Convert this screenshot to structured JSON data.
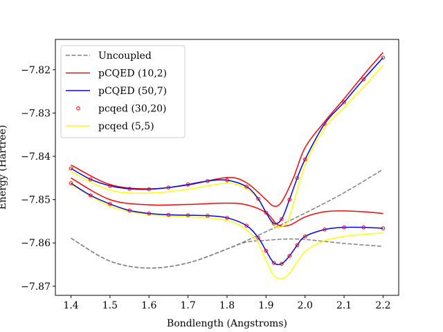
{
  "chart_data": {
    "type": "line",
    "title": "",
    "xlabel": "Bondlength (Angstroms)",
    "ylabel": "Energy (Hartree)",
    "xlim": [
      1.36,
      2.24
    ],
    "ylim": [
      -7.8721,
      -7.813
    ],
    "xticks": [
      1.4,
      1.5,
      1.6,
      1.7,
      1.8,
      1.9,
      2.0,
      2.1,
      2.2
    ],
    "xtick_labels": [
      "1.4",
      "1.5",
      "1.6",
      "1.7",
      "1.8",
      "1.9",
      "2.0",
      "2.1",
      "2.2"
    ],
    "yticks": [
      -7.87,
      -7.86,
      -7.85,
      -7.84,
      -7.83,
      -7.82
    ],
    "ytick_labels": [
      "−7.87",
      "−7.86",
      "−7.85",
      "−7.84",
      "−7.83",
      "−7.82"
    ],
    "grid": false,
    "legend_position": "top-left",
    "legend": [
      {
        "label": "Uncoupled",
        "style": "dashed",
        "color": "#808080"
      },
      {
        "label": "pCQED (10,2)",
        "style": "line",
        "color": "#ff0000"
      },
      {
        "label": "pCQED (50,7)",
        "style": "line",
        "color": "#0000ff"
      },
      {
        "label": "pcqed (30,20)",
        "style": "markers",
        "color": "#ff0000"
      },
      {
        "label": "pcqed (5,5)",
        "style": "line",
        "color": "#ffff00"
      }
    ],
    "series": [
      {
        "legend_index": 0,
        "style": "dashed",
        "color": "#808080",
        "x": [
          1.4,
          1.5,
          1.6,
          1.7,
          1.8,
          1.9,
          2.0,
          2.1,
          2.2
        ],
        "y": [
          -7.8589,
          -7.8642,
          -7.8658,
          -7.8646,
          -7.8614,
          -7.8574,
          -7.8531,
          -7.8484,
          -7.843
        ]
      },
      {
        "legend_index": null,
        "style": "dashed",
        "color": "#808080",
        "x": [
          1.4,
          1.5,
          1.6,
          1.7,
          1.8,
          1.85,
          1.9,
          1.95,
          2.0,
          2.1,
          2.2
        ],
        "y": [
          -7.8589,
          -7.8642,
          -7.8658,
          -7.8646,
          -7.8614,
          -7.8598,
          -7.8594,
          -7.8591,
          -7.8592,
          -7.8601,
          -7.8608
        ]
      },
      {
        "legend_index": 1,
        "style": "line",
        "color": "#ff0000",
        "x": [
          1.4,
          1.5,
          1.6,
          1.7,
          1.8,
          1.85,
          1.9,
          1.92,
          1.94,
          1.97,
          2.0,
          2.05,
          2.1,
          2.15,
          2.2
        ],
        "y": [
          -7.842,
          -7.8465,
          -7.8475,
          -7.8466,
          -7.8449,
          -7.8461,
          -7.85,
          -7.8515,
          -7.8505,
          -7.845,
          -7.838,
          -7.832,
          -7.8267,
          -7.8212,
          -7.816
        ]
      },
      {
        "legend_index": null,
        "style": "line",
        "color": "#ff0000",
        "x": [
          1.4,
          1.5,
          1.6,
          1.7,
          1.8,
          1.85,
          1.9,
          1.93,
          1.96,
          2.0,
          2.05,
          2.1,
          2.15,
          2.2
        ],
        "y": [
          -7.845,
          -7.85,
          -7.8512,
          -7.8511,
          -7.8508,
          -7.8512,
          -7.853,
          -7.8558,
          -7.8559,
          -7.854,
          -7.8528,
          -7.8526,
          -7.8528,
          -7.8532
        ]
      },
      {
        "legend_index": 2,
        "style": "line",
        "color": "#0000ff",
        "x": [
          1.4,
          1.45,
          1.5,
          1.55,
          1.6,
          1.65,
          1.7,
          1.75,
          1.8,
          1.85,
          1.88,
          1.9,
          1.92,
          1.94,
          1.96,
          1.98,
          2.0,
          2.05,
          2.1,
          2.15,
          2.2
        ],
        "y": [
          -7.8428,
          -7.8453,
          -7.8468,
          -7.8475,
          -7.8476,
          -7.8472,
          -7.8465,
          -7.8457,
          -7.8455,
          -7.847,
          -7.8498,
          -7.853,
          -7.8555,
          -7.8545,
          -7.85,
          -7.845,
          -7.8407,
          -7.8325,
          -7.8275,
          -7.8222,
          -7.8172
        ]
      },
      {
        "legend_index": null,
        "style": "line",
        "color": "#0000ff",
        "x": [
          1.4,
          1.45,
          1.5,
          1.55,
          1.6,
          1.65,
          1.7,
          1.75,
          1.8,
          1.85,
          1.88,
          1.9,
          1.92,
          1.94,
          1.96,
          1.98,
          2.0,
          2.05,
          2.1,
          2.15,
          2.2
        ],
        "y": [
          -7.8462,
          -7.849,
          -7.851,
          -7.8525,
          -7.8532,
          -7.8535,
          -7.8536,
          -7.8537,
          -7.8542,
          -7.856,
          -7.8588,
          -7.8618,
          -7.8646,
          -7.8648,
          -7.863,
          -7.8605,
          -7.8585,
          -7.8569,
          -7.8564,
          -7.8564,
          -7.8566
        ]
      },
      {
        "legend_index": 3,
        "style": "markers",
        "color": "#ff0000",
        "x": [
          1.4,
          1.45,
          1.5,
          1.55,
          1.6,
          1.65,
          1.7,
          1.75,
          1.8,
          1.85,
          1.88,
          1.9,
          1.92,
          1.94,
          1.96,
          1.98,
          2.0,
          2.05,
          2.1,
          2.15,
          2.2
        ],
        "y": [
          -7.8428,
          -7.8453,
          -7.8468,
          -7.8475,
          -7.8476,
          -7.8472,
          -7.8465,
          -7.8457,
          -7.8455,
          -7.847,
          -7.8498,
          -7.853,
          -7.8555,
          -7.8545,
          -7.85,
          -7.845,
          -7.8407,
          -7.8325,
          -7.8275,
          -7.8222,
          -7.8172
        ]
      },
      {
        "legend_index": null,
        "style": "markers",
        "color": "#ff0000",
        "x": [
          1.4,
          1.45,
          1.5,
          1.55,
          1.6,
          1.65,
          1.7,
          1.75,
          1.8,
          1.85,
          1.88,
          1.9,
          1.92,
          1.94,
          1.96,
          1.98,
          2.0,
          2.05,
          2.1,
          2.15,
          2.2
        ],
        "y": [
          -7.8462,
          -7.849,
          -7.851,
          -7.8525,
          -7.8532,
          -7.8535,
          -7.8536,
          -7.8537,
          -7.8542,
          -7.856,
          -7.8588,
          -7.8618,
          -7.8646,
          -7.8648,
          -7.863,
          -7.8605,
          -7.8585,
          -7.8569,
          -7.8564,
          -7.8564,
          -7.8566
        ]
      },
      {
        "legend_index": 4,
        "style": "line",
        "color": "#ffff00",
        "x": [
          1.4,
          1.5,
          1.6,
          1.7,
          1.8,
          1.85,
          1.88,
          1.9,
          1.92,
          1.94,
          1.96,
          2.0,
          2.05,
          2.1,
          2.15,
          2.2
        ],
        "y": [
          -7.8435,
          -7.8478,
          -7.8485,
          -7.8476,
          -7.8462,
          -7.8475,
          -7.85,
          -7.853,
          -7.856,
          -7.8562,
          -7.854,
          -7.842,
          -7.8335,
          -7.8287,
          -7.824,
          -7.819
        ]
      },
      {
        "legend_index": null,
        "style": "line",
        "color": "#ffff00",
        "x": [
          1.4,
          1.5,
          1.6,
          1.7,
          1.8,
          1.85,
          1.88,
          1.9,
          1.92,
          1.94,
          1.96,
          2.0,
          2.05,
          2.1,
          2.15,
          2.2
        ],
        "y": [
          -7.8465,
          -7.8515,
          -7.8535,
          -7.8539,
          -7.8548,
          -7.857,
          -7.86,
          -7.864,
          -7.8675,
          -7.8683,
          -7.867,
          -7.862,
          -7.8595,
          -7.8585,
          -7.858,
          -7.8577
        ]
      }
    ]
  }
}
